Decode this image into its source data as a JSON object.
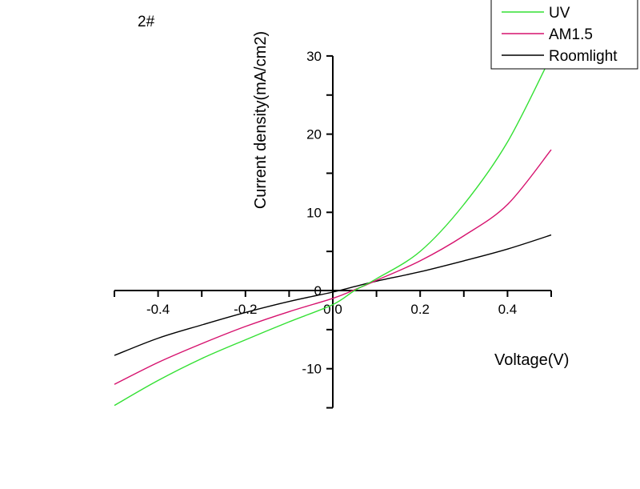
{
  "chart_data": {
    "type": "line",
    "title": "2#",
    "xlabel": "Voltage(V)",
    "ylabel": "Current density(mA/cm2)",
    "xlim": [
      -0.5,
      0.5
    ],
    "ylim": [
      -15,
      30
    ],
    "xticks": [
      -0.4,
      -0.2,
      0.0,
      0.2,
      0.4
    ],
    "xtick_labels": [
      "-0.4",
      "-0.2",
      "0.0",
      "0.2",
      "0.4"
    ],
    "yticks": [
      -10,
      0,
      10,
      20,
      30
    ],
    "ytick_labels": [
      "-10",
      "0",
      "10",
      "20",
      "30"
    ],
    "grid": false,
    "legend_position": "top-right",
    "x": [
      -0.5,
      -0.4,
      -0.3,
      -0.2,
      -0.1,
      0.0,
      0.05,
      0.1,
      0.2,
      0.3,
      0.4,
      0.5
    ],
    "series": [
      {
        "name": "UV",
        "color": "#33e033",
        "values": [
          -14.7,
          -11.5,
          -8.7,
          -6.3,
          -4.0,
          -1.8,
          0.0,
          1.5,
          5.0,
          11.0,
          19.0,
          30.0
        ]
      },
      {
        "name": "AM1.5",
        "color": "#d6126e",
        "values": [
          -12.0,
          -9.2,
          -6.8,
          -4.6,
          -2.7,
          -1.0,
          0.1,
          1.3,
          3.8,
          7.0,
          11.0,
          18.0
        ]
      },
      {
        "name": "Roomlight",
        "color": "#000000",
        "values": [
          -8.3,
          -6.1,
          -4.4,
          -2.8,
          -1.4,
          -0.2,
          0.5,
          1.2,
          2.4,
          3.8,
          5.3,
          7.1
        ]
      }
    ]
  }
}
